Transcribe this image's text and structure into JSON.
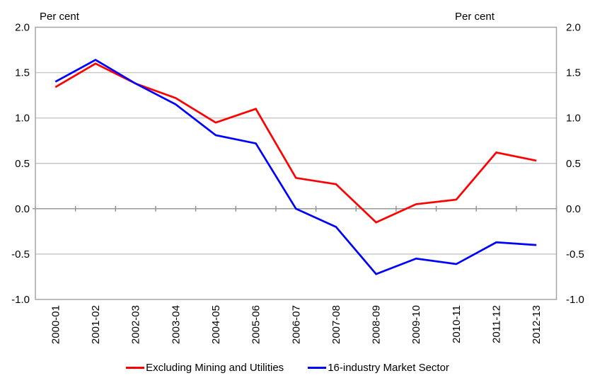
{
  "chart_data": {
    "type": "line",
    "title": "",
    "ylabel_left": "Per cent",
    "ylabel_right": "Per cent",
    "categories": [
      "2000-01",
      "2001-02",
      "2002-03",
      "2003-04",
      "2004-05",
      "2005-06",
      "2006-07",
      "2007-08",
      "2008-09",
      "2009-10",
      "2010-11",
      "2011-12",
      "2012-13"
    ],
    "series": [
      {
        "name": "Excluding Mining and Utilities",
        "color": "#ff0000",
        "values": [
          1.34,
          1.6,
          1.38,
          1.22,
          0.95,
          1.1,
          0.34,
          0.27,
          -0.15,
          0.05,
          0.1,
          0.62,
          0.53
        ]
      },
      {
        "name": "16-industry Market Sector",
        "color": "#0000ff",
        "values": [
          1.4,
          1.64,
          1.38,
          1.15,
          0.81,
          0.72,
          0.0,
          -0.2,
          -0.72,
          -0.55,
          -0.61,
          -0.37,
          -0.4
        ]
      }
    ],
    "ylim": [
      -1.0,
      2.0
    ],
    "yticks": [
      2.0,
      1.5,
      1.0,
      0.5,
      0.0,
      -0.5,
      -1.0
    ],
    "grid": true,
    "legend_position": "bottom",
    "gridline_color": "#c6c6c6",
    "axis_color": "#8f8f8f",
    "border_color": "#a6a6a6"
  }
}
